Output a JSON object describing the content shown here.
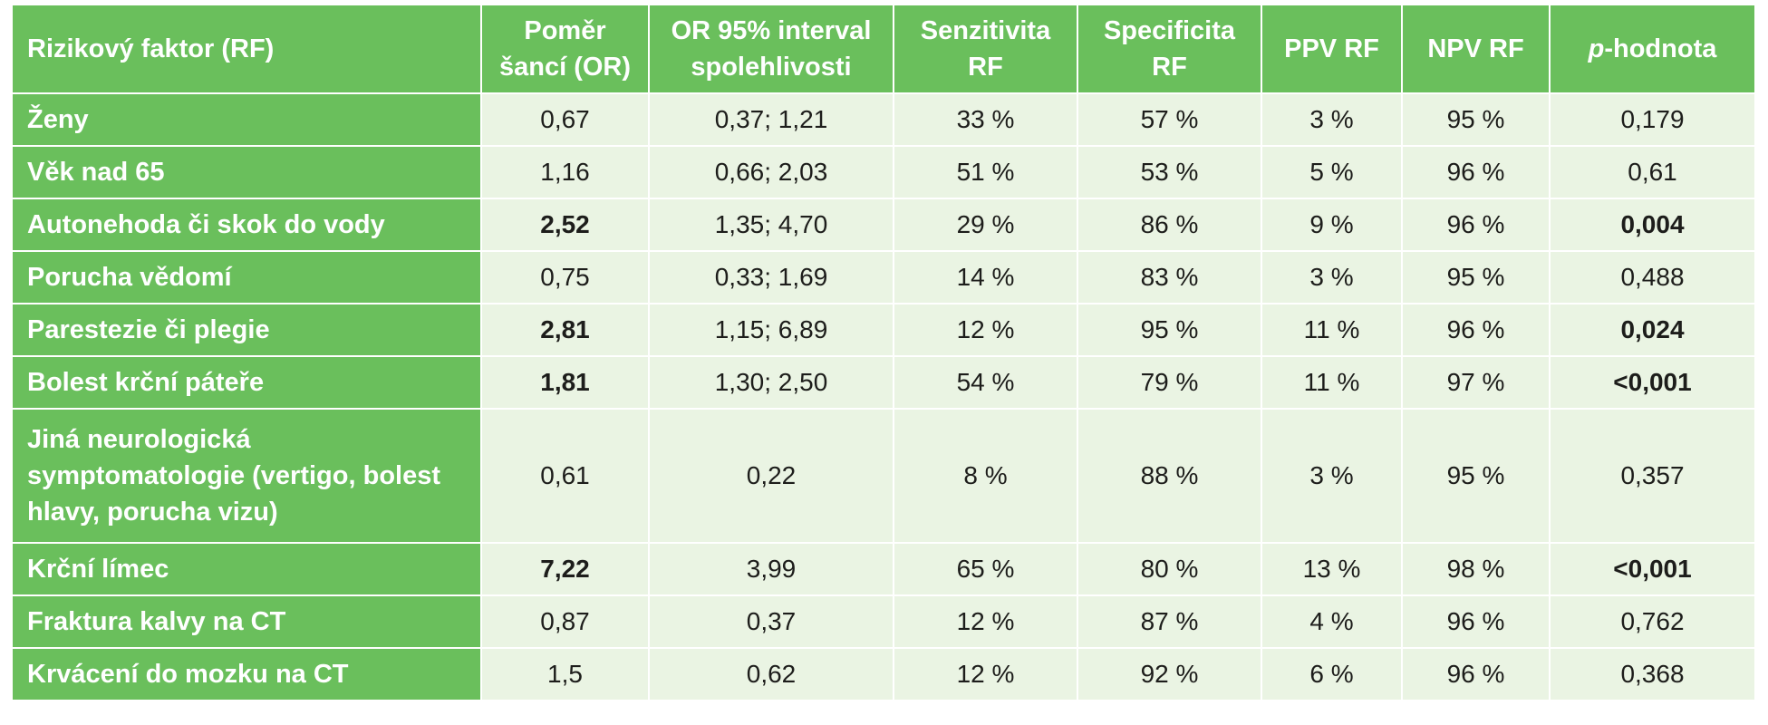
{
  "table": {
    "headers": [
      "Rizikový faktor (RF)",
      "Poměr šancí (OR)",
      "OR 95% interval spolehlivosti",
      "Senzitivita RF",
      "Specificita RF",
      "PPV RF",
      "NPV RF",
      "p-hodnota"
    ],
    "header_p_italic": "p",
    "header_p_rest": "-hodnota",
    "rows": [
      {
        "rf": "Ženy",
        "or": "0,67",
        "ci": "0,37; 1,21",
        "sens": "33 %",
        "spec": "57 %",
        "ppv": "3 %",
        "npv": "95 %",
        "p": "0,179"
      },
      {
        "rf": "Věk nad 65",
        "or": "1,16",
        "ci": "0,66; 2,03",
        "sens": "51 %",
        "spec": "53 %",
        "ppv": "5 %",
        "npv": "96 %",
        "p": "0,61"
      },
      {
        "rf": "Autonehoda či skok do vody",
        "or": "2,52",
        "ci": "1,35; 4,70",
        "sens": "29 %",
        "spec": "86 %",
        "ppv": "9 %",
        "npv": "96 %",
        "p": "0,004"
      },
      {
        "rf": "Porucha vědomí",
        "or": "0,75",
        "ci": "0,33; 1,69",
        "sens": "14 %",
        "spec": "83 %",
        "ppv": "3 %",
        "npv": "95 %",
        "p": "0,488"
      },
      {
        "rf": "Parestezie či plegie",
        "or": "2,81",
        "ci": "1,15; 6,89",
        "sens": "12 %",
        "spec": "95 %",
        "ppv": "11 %",
        "npv": "96 %",
        "p": "0,024"
      },
      {
        "rf": "Bolest krční páteře",
        "or": "1,81",
        "ci": "1,30; 2,50",
        "sens": "54 %",
        "spec": "79 %",
        "ppv": "11 %",
        "npv": "97 %",
        "p": "<0,001"
      },
      {
        "rf": "Jiná neurologická symptomatologie (vertigo, bolest hlavy, porucha vizu)",
        "or": "0,61",
        "ci": "0,22",
        "sens": "8 %",
        "spec": "88 %",
        "ppv": "3 %",
        "npv": "95 %",
        "p": "0,357"
      },
      {
        "rf": "Krční límec",
        "or": "7,22",
        "ci": "3,99",
        "sens": "65 %",
        "spec": "80 %",
        "ppv": "13 %",
        "npv": "98 %",
        "p": "<0,001"
      },
      {
        "rf": "Fraktura kalvy na CT",
        "or": "0,87",
        "ci": "0,37",
        "sens": "12 %",
        "spec": "87 %",
        "ppv": "4 %",
        "npv": "96 %",
        "p": "0,762"
      },
      {
        "rf": "Krvácení do mozku na CT",
        "or": "1,5",
        "ci": "0,62",
        "sens": "12 %",
        "spec": "92 %",
        "ppv": "6 %",
        "npv": "96 %",
        "p": "0,368"
      }
    ]
  },
  "colors": {
    "header_green": "#6abf5c",
    "cell_bg": "#eaf4e3",
    "text_dark": "#1d1d1b",
    "text_white": "#ffffff"
  }
}
